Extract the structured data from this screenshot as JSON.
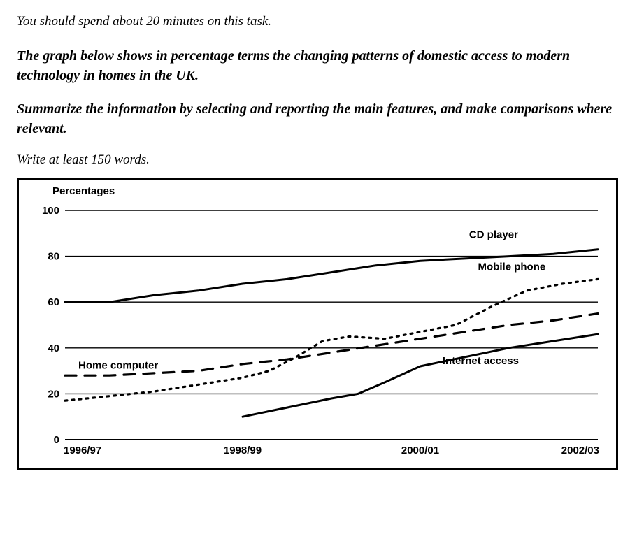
{
  "task": {
    "time_instruction": "You should spend about 20 minutes on this task.",
    "prompt_line1": "The graph below shows in percentage terms the changing patterns of domestic access to modern technology in homes in the UK.",
    "prompt_line2": "Summarize the information by selecting and reporting the main features, and make comparisons where relevant.",
    "word_instruction": "Write at least 150 words."
  },
  "chart": {
    "type": "line",
    "y_axis_title": "Percentages",
    "background_color": "#ffffff",
    "frame_border_color": "#000000",
    "gridline_color": "#000000",
    "axis_fontsize": 15,
    "axis_fontweight": "bold",
    "label_fontsize": 15,
    "label_fontweight": "bold",
    "xlim": [
      0,
      6
    ],
    "ylim": [
      0,
      100
    ],
    "y_ticks": [
      0,
      20,
      40,
      60,
      80,
      100
    ],
    "x_ticks": [
      {
        "pos": 0,
        "label": "1996/97"
      },
      {
        "pos": 2,
        "label": "1998/99"
      },
      {
        "pos": 4,
        "label": "2000/01"
      },
      {
        "pos": 6,
        "label": "2002/03"
      }
    ],
    "series": {
      "cd_player": {
        "label": "CD player",
        "label_xy": [
          4.55,
          88
        ],
        "color": "#000000",
        "style": "solid",
        "width": 3,
        "points": [
          [
            0,
            60
          ],
          [
            0.5,
            60
          ],
          [
            1,
            63
          ],
          [
            1.5,
            65
          ],
          [
            2,
            68
          ],
          [
            2.5,
            70
          ],
          [
            3,
            73
          ],
          [
            3.5,
            76
          ],
          [
            4,
            78
          ],
          [
            4.5,
            79
          ],
          [
            5,
            80
          ],
          [
            5.5,
            81
          ],
          [
            6,
            83
          ]
        ]
      },
      "mobile_phone": {
        "label": "Mobile phone",
        "label_xy": [
          4.65,
          74
        ],
        "color": "#000000",
        "style": "dotted",
        "width": 3.2,
        "points": [
          [
            0,
            17
          ],
          [
            0.5,
            19
          ],
          [
            1,
            21
          ],
          [
            1.5,
            24
          ],
          [
            2,
            27
          ],
          [
            2.3,
            30
          ],
          [
            2.6,
            36
          ],
          [
            2.9,
            43
          ],
          [
            3.2,
            45
          ],
          [
            3.6,
            44
          ],
          [
            4,
            47
          ],
          [
            4.4,
            50
          ],
          [
            4.8,
            58
          ],
          [
            5.2,
            65
          ],
          [
            5.6,
            68
          ],
          [
            6,
            70
          ]
        ]
      },
      "home_computer": {
        "label": "Home computer",
        "label_xy": [
          0.15,
          31
        ],
        "color": "#000000",
        "style": "dashed",
        "width": 3.2,
        "points": [
          [
            0,
            28
          ],
          [
            0.5,
            28
          ],
          [
            1,
            29
          ],
          [
            1.5,
            30
          ],
          [
            2,
            33
          ],
          [
            2.5,
            35
          ],
          [
            3,
            38
          ],
          [
            3.5,
            41
          ],
          [
            4,
            44
          ],
          [
            4.5,
            47
          ],
          [
            5,
            50
          ],
          [
            5.5,
            52
          ],
          [
            6,
            55
          ]
        ]
      },
      "internet_access": {
        "label": "Internet access",
        "label_xy": [
          4.25,
          33
        ],
        "color": "#000000",
        "style": "solid",
        "width": 3,
        "points": [
          [
            2,
            10
          ],
          [
            2.5,
            14
          ],
          [
            3,
            18
          ],
          [
            3.3,
            20
          ],
          [
            3.6,
            25
          ],
          [
            4,
            32
          ],
          [
            4.5,
            36
          ],
          [
            5,
            40
          ],
          [
            5.5,
            43
          ],
          [
            6,
            46
          ]
        ]
      }
    }
  }
}
